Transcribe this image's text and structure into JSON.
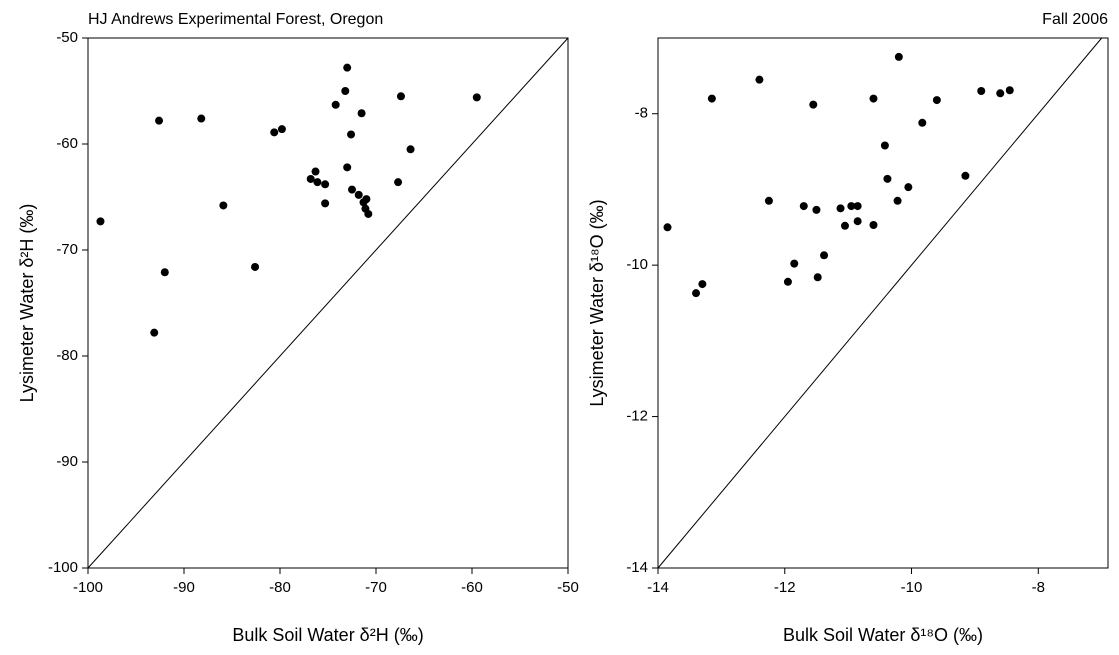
{
  "chart_data": [
    {
      "type": "scatter",
      "title": "HJ Andrews Experimental Forest, Oregon",
      "x_label": "Bulk Soil Water δ²H (‰)",
      "y_label": "Lysimeter Water δ²H (‰)",
      "xlim": [
        -100,
        -50
      ],
      "ylim": [
        -100,
        -50
      ],
      "xticks": [
        -100,
        -90,
        -80,
        -70,
        -60,
        -50
      ],
      "yticks": [
        -100,
        -90,
        -80,
        -70,
        -60,
        -50
      ],
      "color": "#000000",
      "x": [
        -98.7,
        -92.6,
        -93.1,
        -92.0,
        -88.2,
        -85.9,
        -82.6,
        -80.6,
        -79.8,
        -76.8,
        -76.3,
        -76.1,
        -75.3,
        -75.3,
        -74.2,
        -73.2,
        -73.0,
        -73.0,
        -72.6,
        -72.5,
        -71.8,
        -71.5,
        -71.3,
        -71.1,
        -71.0,
        -70.8,
        -67.7,
        -67.4,
        -66.4,
        -59.5
      ],
      "values": [
        -67.3,
        -57.8,
        -77.8,
        -72.1,
        -57.6,
        -65.8,
        -71.6,
        -58.9,
        -58.6,
        -63.3,
        -62.6,
        -63.6,
        -63.8,
        -65.6,
        -56.3,
        -55.0,
        -52.8,
        -62.2,
        -59.1,
        -64.3,
        -64.8,
        -57.1,
        -65.5,
        -66.1,
        -65.2,
        -66.6,
        -63.6,
        -55.5,
        -60.5,
        -55.6
      ]
    },
    {
      "type": "scatter",
      "title": "Fall 2006",
      "x_label": "Bulk Soil Water δ¹⁸O (‰)",
      "y_label": "Lysimeter Water δ¹⁸O (‰)",
      "xlim": [
        -14,
        -6.9
      ],
      "ylim": [
        -14,
        -7
      ],
      "xticks": [
        -14,
        -12,
        -10,
        -8
      ],
      "yticks": [
        -14,
        -12,
        -10,
        -8
      ],
      "color": "#000000",
      "x": [
        -13.85,
        -13.4,
        -13.3,
        -13.15,
        -12.4,
        -12.25,
        -11.95,
        -11.85,
        -11.7,
        -11.55,
        -11.5,
        -11.48,
        -11.38,
        -11.12,
        -11.05,
        -10.95,
        -10.85,
        -10.85,
        -10.6,
        -10.6,
        -10.42,
        -10.38,
        -10.22,
        -10.2,
        -10.05,
        -9.83,
        -9.6,
        -9.15,
        -8.9,
        -8.6,
        -8.45
      ],
      "values": [
        -9.5,
        -10.37,
        -10.25,
        -7.8,
        -7.55,
        -9.15,
        -10.22,
        -9.98,
        -9.22,
        -7.88,
        -9.27,
        -10.16,
        -9.87,
        -9.25,
        -9.48,
        -9.22,
        -9.22,
        -9.42,
        -9.47,
        -7.8,
        -8.42,
        -8.86,
        -9.15,
        -7.25,
        -8.97,
        -8.12,
        -7.82,
        -8.82,
        -7.7,
        -7.73,
        -7.69
      ]
    }
  ]
}
